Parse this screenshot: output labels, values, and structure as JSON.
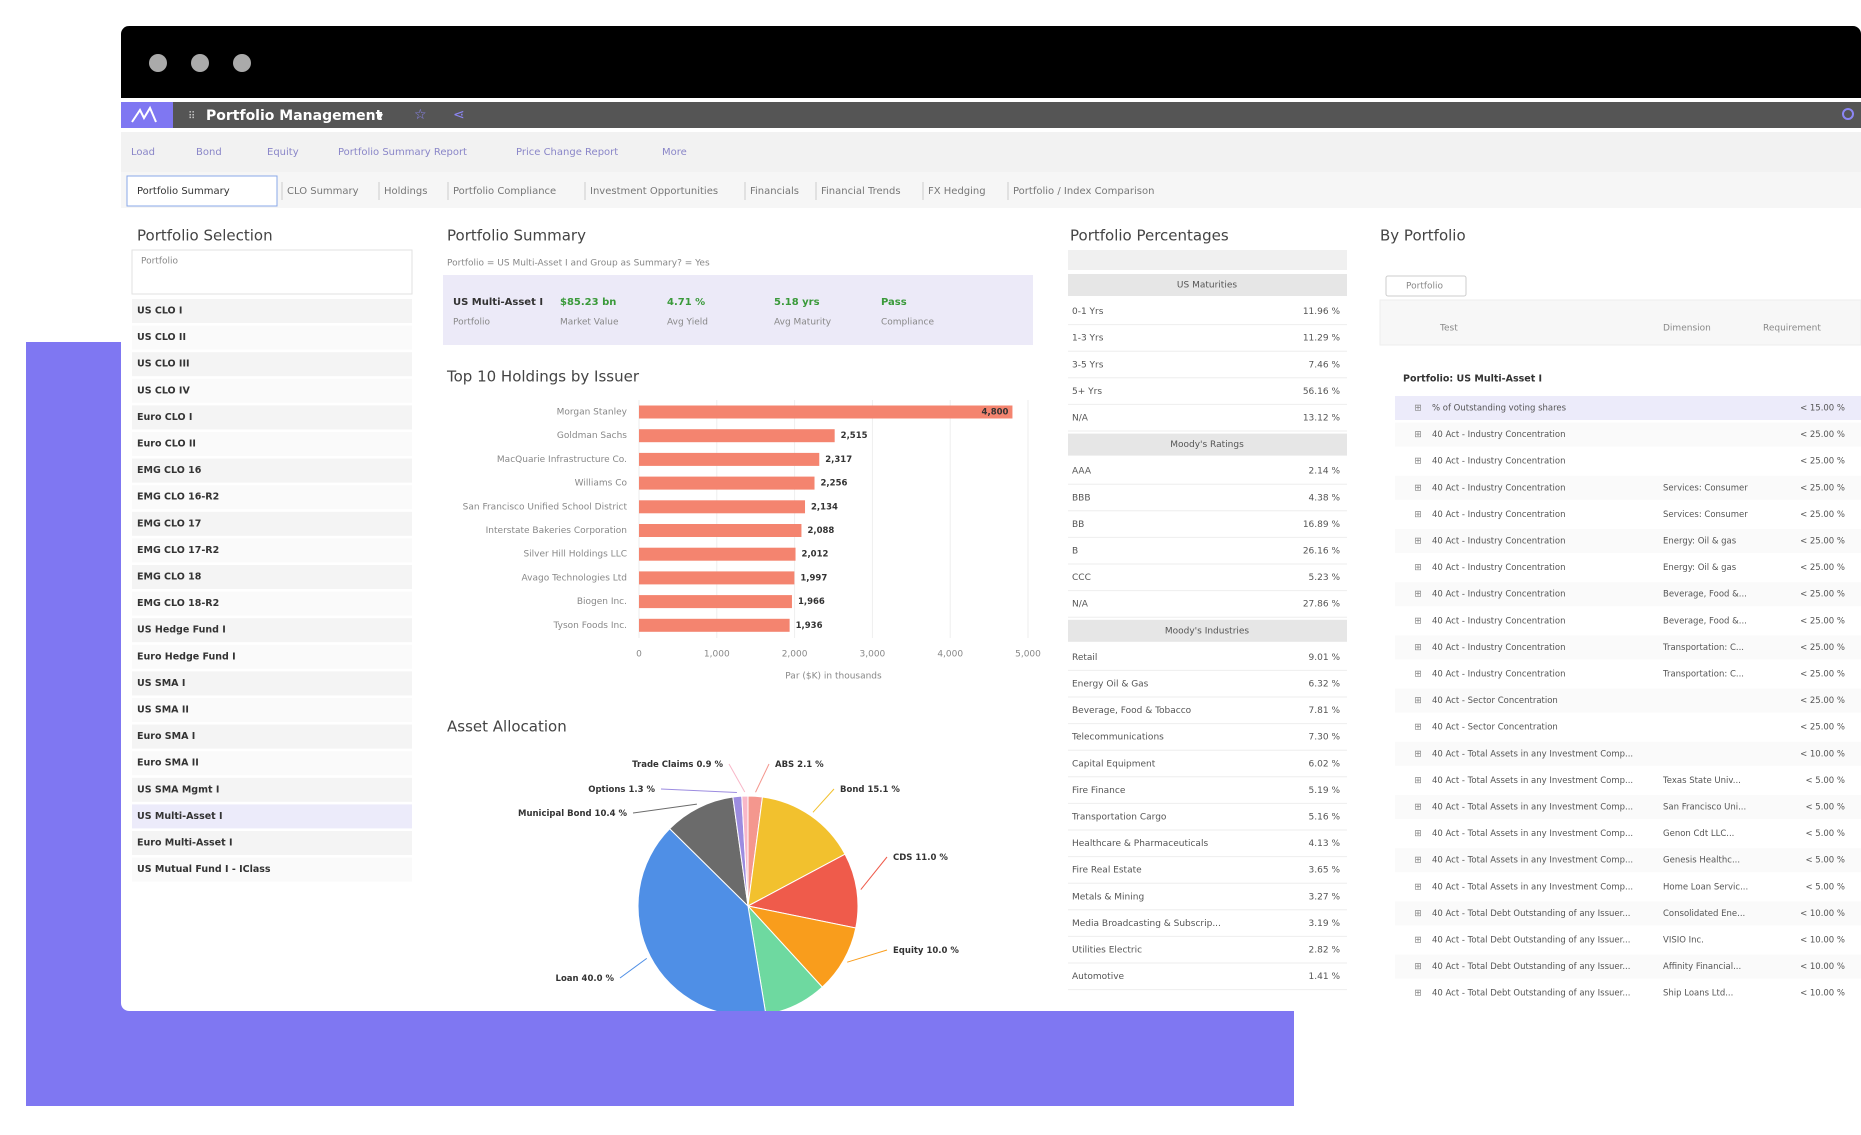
{
  "window": {
    "app_title": "Portfolio Management"
  },
  "toolbar": [
    "Load",
    "Bond",
    "Equity",
    "Portfolio Summary Report",
    "Price Change Report",
    "More"
  ],
  "tabs": [
    "Portfolio Summary",
    "CLO Summary",
    "Holdings",
    "Portfolio Compliance",
    "Investment Opportunities",
    "Financials",
    "Financial Trends",
    "FX Hedging",
    "Portfolio / Index Comparison"
  ],
  "selection": {
    "title": "Portfolio Selection",
    "column": "Portfolio",
    "items": [
      "US CLO I",
      "US CLO II",
      "US CLO III",
      "US CLO IV",
      "Euro CLO I",
      "Euro CLO II",
      "EMG CLO 16",
      "EMG CLO 16-R2",
      "EMG CLO 17",
      "EMG CLO 17-R2",
      "EMG CLO 18",
      "EMG CLO 18-R2",
      "US Hedge Fund I",
      "Euro Hedge Fund I",
      "US SMA I",
      "US SMA II",
      "Euro SMA I",
      "Euro SMA II",
      "US SMA Mgmt I",
      "US Multi-Asset I",
      "Euro Multi-Asset I",
      "US Mutual Fund I - IClass"
    ],
    "selected": 19
  },
  "summary": {
    "title": "Portfolio Summary",
    "breadcrumb": "Portfolio = US Multi-Asset I and Group as Summary? = Yes",
    "kpis": [
      {
        "value": "US Multi-Asset I",
        "label": "Portfolio"
      },
      {
        "value": "$85.23 bn",
        "label": "Market Value"
      },
      {
        "value": "4.71 %",
        "label": "Avg Yield"
      },
      {
        "value": "5.18 yrs",
        "label": "Avg Maturity"
      },
      {
        "value": "Pass",
        "label": "Compliance"
      }
    ]
  },
  "holdings_chart": {
    "type": "bar",
    "title": "Top 10 Holdings by Issuer",
    "categories": [
      "Morgan Stanley",
      "Goldman Sachs",
      "MacQuarie Infrastructure Co.",
      "Williams Co",
      "San Francisco Unified School District",
      "Interstate Bakeries Corporation",
      "Silver Hill Holdings LLC",
      "Avago Technologies Ltd",
      "Biogen Inc.",
      "Tyson Foods Inc."
    ],
    "values": [
      4800,
      2515,
      2317,
      2256,
      2134,
      2088,
      2012,
      1997,
      1966,
      1936
    ],
    "value_labels": [
      "4,800",
      "2,515",
      "2,317",
      "2,256",
      "2,134",
      "2,088",
      "2,012",
      "1,997",
      "1,966",
      "1,936"
    ],
    "color": "#f4846f",
    "xlim": [
      0,
      5000
    ],
    "xticks": [
      0,
      {
        "value": 1000,
        "label": "1,000"
      },
      {
        "value": 2000,
        "label": "2,000"
      },
      {
        "value": 3000,
        "label": "3,000"
      },
      {
        "value": 4000,
        "label": "4,000"
      },
      {
        "value": 5000,
        "label": "5,000"
      }
    ],
    "xlabel": "Par ($K) in thousands"
  },
  "allocation_chart": {
    "type": "pie",
    "title": "Asset Allocation",
    "categories": [
      "ABS",
      "Bond",
      "CDS",
      "Equity",
      null,
      "Loan",
      "Municipal Bond",
      "Options",
      "Trade Claims"
    ],
    "values": [
      2.1,
      15.1,
      11.0,
      10.0,
      9.2,
      40.0,
      10.4,
      1.3,
      0.9
    ],
    "value_labels": [
      "2.1 %",
      "15.1 %",
      "11.0 %",
      "10.0 %",
      null,
      "40.0 %",
      "10.4 %",
      "1.3 %",
      "0.9 %"
    ],
    "colors": [
      "#f4978e",
      "#f2c12e",
      "#ef5b4b",
      "#f99d1c",
      "#6ed9a0",
      "#4f8fe6",
      "#6b6b6b",
      "#9c8ce0",
      "#f8b7c8"
    ]
  },
  "percentages": {
    "title": "Portfolio Percentages",
    "groups": [
      {
        "name": "US Maturities",
        "rows": [
          [
            "0-1 Yrs",
            "11.96 %"
          ],
          [
            "1-3 Yrs",
            "11.29 %"
          ],
          [
            "3-5 Yrs",
            "7.46 %"
          ],
          [
            "5+ Yrs",
            "56.16 %"
          ],
          [
            "N/A",
            "13.12 %"
          ]
        ]
      },
      {
        "name": "Moody's Ratings",
        "rows": [
          [
            "AAA",
            "2.14 %"
          ],
          [
            "BBB",
            "4.38 %"
          ],
          [
            "BB",
            "16.89 %"
          ],
          [
            "B",
            "26.16 %"
          ],
          [
            "CCC",
            "5.23 %"
          ],
          [
            "N/A",
            "27.86 %"
          ]
        ]
      },
      {
        "name": "Moody's Industries",
        "rows": [
          [
            "Retail",
            "9.01 %"
          ],
          [
            "Energy Oil & Gas",
            "6.32 %"
          ],
          [
            "Beverage, Food & Tobacco",
            "7.81 %"
          ],
          [
            "Telecommunications",
            "7.30 %"
          ],
          [
            "Capital Equipment",
            "6.02 %"
          ],
          [
            "Fire Finance",
            "5.19 %"
          ],
          [
            "Transportation Cargo",
            "5.16 %"
          ],
          [
            "Healthcare & Pharmaceuticals",
            "4.13 %"
          ],
          [
            "Fire Real Estate",
            "3.65 %"
          ],
          [
            "Metals & Mining",
            "3.27 %"
          ],
          [
            "Media Broadcasting & Subscrip...",
            "3.19 %"
          ],
          [
            "Utilities Electric",
            "2.82 %"
          ],
          [
            "Automotive",
            "1.41 %"
          ]
        ]
      }
    ]
  },
  "by_portfolio": {
    "title": "By Portfolio",
    "filter": "Portfolio",
    "columns": [
      "Test",
      "Dimension",
      "Requirement"
    ],
    "group": "Portfolio: US Multi-Asset I",
    "rows": [
      {
        "test": "% of Outstanding voting shares",
        "dimension": null,
        "requirement": "< 15.00 %"
      },
      {
        "test": "40 Act - Industry Concentration",
        "dimension": null,
        "requirement": "< 25.00 %"
      },
      {
        "test": "40 Act - Industry Concentration",
        "dimension": null,
        "requirement": "< 25.00 %"
      },
      {
        "test": "40 Act - Industry Concentration",
        "dimension": "Services: Consumer",
        "requirement": "< 25.00 %"
      },
      {
        "test": "40 Act - Industry Concentration",
        "dimension": "Services: Consumer",
        "requirement": "< 25.00 %"
      },
      {
        "test": "40 Act - Industry Concentration",
        "dimension": "Energy: Oil & gas",
        "requirement": "< 25.00 %"
      },
      {
        "test": "40 Act - Industry Concentration",
        "dimension": "Energy: Oil & gas",
        "requirement": "< 25.00 %"
      },
      {
        "test": "40 Act - Industry Concentration",
        "dimension": "Beverage, Food &...",
        "requirement": "< 25.00 %"
      },
      {
        "test": "40 Act - Industry Concentration",
        "dimension": "Beverage, Food &...",
        "requirement": "< 25.00 %"
      },
      {
        "test": "40 Act - Industry Concentration",
        "dimension": "Transportation: C...",
        "requirement": "< 25.00 %"
      },
      {
        "test": "40 Act - Industry Concentration",
        "dimension": "Transportation: C...",
        "requirement": "< 25.00 %"
      },
      {
        "test": "40 Act - Sector Concentration",
        "dimension": null,
        "requirement": "< 25.00 %"
      },
      {
        "test": "40 Act - Sector Concentration",
        "dimension": null,
        "requirement": "< 25.00 %"
      },
      {
        "test": "40 Act - Total Assets in any Investment Comp...",
        "dimension": null,
        "requirement": "< 10.00 %"
      },
      {
        "test": "40 Act - Total Assets in any Investment Comp...",
        "dimension": "Texas State Univ...",
        "requirement": "< 5.00 %"
      },
      {
        "test": "40 Act - Total Assets in any Investment Comp...",
        "dimension": "San Francisco Uni...",
        "requirement": "< 5.00 %"
      },
      {
        "test": "40 Act - Total Assets in any Investment Comp...",
        "dimension": "Genon Cdt LLC...",
        "requirement": "< 5.00 %"
      },
      {
        "test": "40 Act - Total Assets in any Investment Comp...",
        "dimension": "Genesis Healthc...",
        "requirement": "< 5.00 %"
      },
      {
        "test": "40 Act - Total Assets in any Investment Comp...",
        "dimension": "Home Loan Servic...",
        "requirement": "< 5.00 %"
      },
      {
        "test": "40 Act - Total Debt Outstanding of any Issuer...",
        "dimension": "Consolidated Ene...",
        "requirement": "< 10.00 %"
      },
      {
        "test": "40 Act - Total Debt Outstanding of any Issuer...",
        "dimension": "VISIO Inc.",
        "requirement": "< 10.00 %"
      },
      {
        "test": "40 Act - Total Debt Outstanding of any Issuer...",
        "dimension": "Affinity Financial...",
        "requirement": "< 10.00 %"
      },
      {
        "test": "40 Act - Total Debt Outstanding of any Issuer...",
        "dimension": "Ship Loans Ltd...",
        "requirement": "< 10.00 %"
      }
    ]
  }
}
